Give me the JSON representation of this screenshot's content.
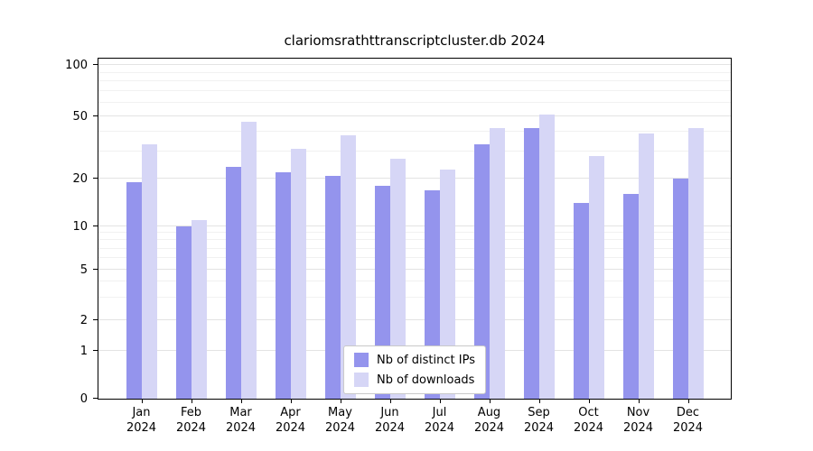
{
  "chart_data": {
    "type": "bar",
    "title": "clariomsrathttranscriptcluster.db 2024",
    "categories": [
      "Jan",
      "Feb",
      "Mar",
      "Apr",
      "May",
      "Jun",
      "Jul",
      "Aug",
      "Sep",
      "Oct",
      "Nov",
      "Dec"
    ],
    "year_label": "2024",
    "series": [
      {
        "name": "Nb of distinct IPs",
        "color": "#9494ed",
        "values": [
          19,
          10,
          24,
          22,
          21,
          18,
          17,
          33,
          42,
          14,
          16,
          20
        ]
      },
      {
        "name": "Nb of downloads",
        "color": "#d6d6f6",
        "values": [
          33,
          11,
          46,
          31,
          38,
          27,
          23,
          42,
          51,
          28,
          39,
          42
        ]
      }
    ],
    "xlabel": "",
    "ylabel": "",
    "yticks": [
      0,
      1,
      2,
      5,
      10,
      20,
      50,
      100
    ],
    "minor_gridlines": [
      3,
      4,
      6,
      7,
      8,
      9,
      30,
      40,
      60,
      70,
      80,
      90
    ],
    "ylim": [
      0,
      110
    ],
    "scale": "log-like",
    "scale_anchors": [
      [
        0,
        0
      ],
      [
        1,
        0.14
      ],
      [
        2,
        0.232
      ],
      [
        5,
        0.38
      ],
      [
        10,
        0.507
      ],
      [
        20,
        0.646
      ],
      [
        50,
        0.831
      ],
      [
        100,
        0.981
      ]
    ],
    "grid": true,
    "legend_position": "bottom-center"
  }
}
